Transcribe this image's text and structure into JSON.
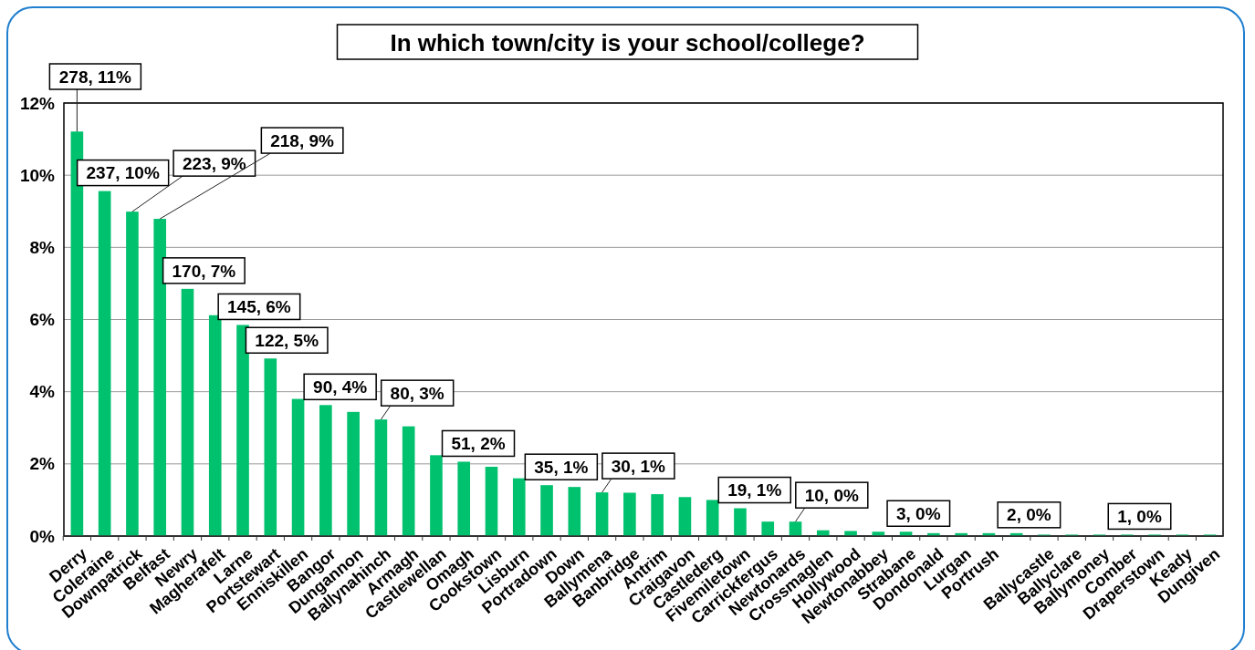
{
  "chart_data": {
    "type": "bar",
    "title": "In which town/city is your school/college?",
    "categories": [
      "Derry",
      "Coleraine",
      "Downpatrick",
      "Belfast",
      "Newry",
      "Magherafelt",
      "Larne",
      "Portstewart",
      "Enniskillen",
      "Bangor",
      "Dungannon",
      "Ballynahinch",
      "Armagh",
      "Castlewellan",
      "Omagh",
      "Cookstown",
      "Lisburn",
      "Portradown",
      "Down",
      "Ballymena",
      "Banbridge",
      "Antrim",
      "Craigavon",
      "Castlederg",
      "Fivemiletown",
      "Carrickfergus",
      "Newtonards",
      "Crossmaglen",
      "Hollywood",
      "Newtonabbey",
      "Strabane",
      "Dondonald",
      "Lurgan",
      "Portrush",
      null,
      "Ballycastle",
      "Ballyclare",
      "Ballymoney",
      "Comber",
      "Draperstown",
      "Keady",
      "Dungiven"
    ],
    "values": [
      11.21,
      9.56,
      8.99,
      8.79,
      6.85,
      6.12,
      5.85,
      4.92,
      3.8,
      3.63,
      3.44,
      3.23,
      3.04,
      2.24,
      2.06,
      1.92,
      1.6,
      1.41,
      1.36,
      1.21,
      1.2,
      1.16,
      1.08,
      1.0,
      0.77,
      0.4,
      0.4,
      0.16,
      0.14,
      0.12,
      0.12,
      0.08,
      0.08,
      0.08,
      0.08,
      0.04,
      0.04,
      0.04,
      0.04,
      0.04,
      0.04,
      0.04
    ],
    "value_labels": [
      "278, 11%",
      "237, 10%",
      "223, 9%",
      "218, 9%",
      "170, 7%",
      null,
      "145, 6%",
      "122, 5%",
      null,
      "90, 4%",
      null,
      "80, 3%",
      null,
      null,
      "51, 2%",
      null,
      null,
      "35, 1%",
      null,
      "30, 1%",
      null,
      null,
      null,
      null,
      "19, 1%",
      null,
      "10, 0%",
      null,
      null,
      null,
      "3, 0%",
      null,
      null,
      null,
      "2, 0%",
      null,
      null,
      null,
      "1, 0%",
      null,
      null,
      null
    ],
    "color": "#00c16e",
    "ylim": [
      0,
      12
    ],
    "yticks": [
      {
        "value": 0,
        "label": "0%"
      },
      {
        "value": 2,
        "label": "2%"
      },
      {
        "value": 4,
        "label": "4%"
      },
      {
        "value": 6,
        "label": "6%"
      },
      {
        "value": 8,
        "label": "8%"
      },
      {
        "value": 10,
        "label": "10%"
      },
      {
        "value": 12,
        "label": "12%"
      }
    ],
    "grid": "y"
  }
}
